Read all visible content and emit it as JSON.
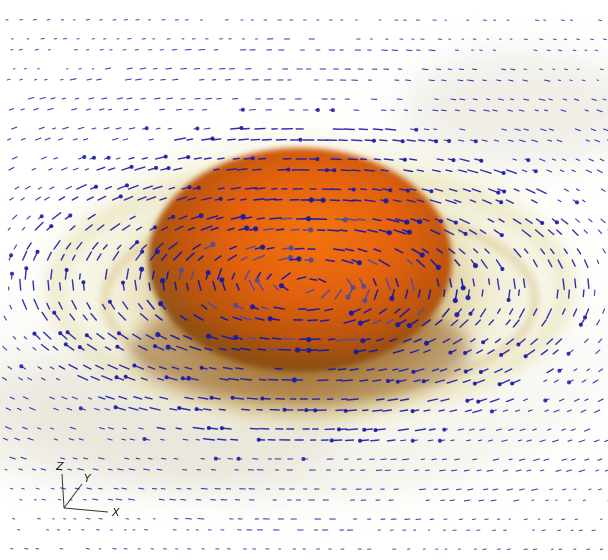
{
  "scene": {
    "kind": "3D volume rendering with velocity vector glyphs",
    "background": "#ffffff",
    "core_color": "#e8650f",
    "halo_color": "#c9a24a",
    "disk_color": "#e7dfa9",
    "glyph_color": "#1a1aa8",
    "glyph_shadow_color": "#5a4a9a"
  },
  "axes": {
    "x_label": "X",
    "y_label": "Y",
    "z_label": "Z"
  }
}
